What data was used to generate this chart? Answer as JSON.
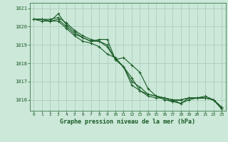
{
  "background_color": "#cce8d8",
  "grid_color": "#aacfbe",
  "line_color": "#1a5c28",
  "title": "Graphe pression niveau de la mer (hPa)",
  "xlim": [
    -0.5,
    23.5
  ],
  "ylim": [
    1015.4,
    1021.3
  ],
  "yticks": [
    1016,
    1017,
    1018,
    1019,
    1020,
    1021
  ],
  "xticks": [
    0,
    1,
    2,
    3,
    4,
    5,
    6,
    7,
    8,
    9,
    10,
    11,
    12,
    13,
    14,
    15,
    16,
    17,
    18,
    19,
    20,
    21,
    22,
    23
  ],
  "series": [
    [
      1020.4,
      1020.4,
      1020.4,
      1020.5,
      1020.2,
      1019.8,
      1019.5,
      1019.3,
      1019.2,
      1019.0,
      1018.2,
      1017.8,
      1017.2,
      1016.5,
      1016.2,
      1016.1,
      1016.1,
      1016.0,
      1015.8,
      1016.1,
      1016.1,
      1016.1,
      1016.0,
      1015.6
    ],
    [
      1020.4,
      1020.4,
      1020.3,
      1020.7,
      1020.1,
      1019.7,
      1019.4,
      1019.2,
      1019.3,
      1019.3,
      1018.2,
      1018.3,
      1017.9,
      1017.5,
      1016.6,
      1016.2,
      1016.1,
      1016.0,
      1016.0,
      1016.1,
      1016.1,
      1016.1,
      1016.0,
      1015.6
    ],
    [
      1020.4,
      1020.3,
      1020.3,
      1020.4,
      1020.0,
      1019.6,
      1019.4,
      1019.2,
      1019.2,
      1018.9,
      1018.2,
      1017.8,
      1017.0,
      1016.7,
      1016.3,
      1016.2,
      1016.0,
      1015.9,
      1016.0,
      1016.1,
      1016.1,
      1016.2,
      1016.0,
      1015.5
    ],
    [
      1020.4,
      1020.4,
      1020.3,
      1020.3,
      1019.9,
      1019.5,
      1019.2,
      1019.1,
      1018.9,
      1018.5,
      1018.3,
      1017.8,
      1016.8,
      1016.5,
      1016.3,
      1016.2,
      1016.1,
      1015.9,
      1015.8,
      1016.0,
      1016.1,
      1016.1,
      1016.0,
      1015.5
    ]
  ]
}
